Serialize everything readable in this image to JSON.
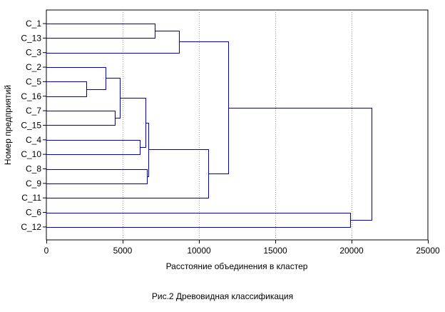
{
  "chart_data": {
    "type": "dendrogram",
    "orientation": "horizontal",
    "xlabel": "Расстояние объединения в кластер",
    "ylabel": "Номер предприятий",
    "caption": "Рис.2 Древовидная классификация",
    "xlim": [
      0,
      25000
    ],
    "xticks": [
      0,
      5000,
      10000,
      15000,
      20000,
      25000
    ],
    "grid": "vertical dotted",
    "leaves": [
      "C_1",
      "C_13",
      "C_3",
      "C_2",
      "C_5",
      "C_16",
      "C_7",
      "C_15",
      "C_4",
      "C_10",
      "C_8",
      "C_9",
      "C_11",
      "C_6",
      "C_12"
    ],
    "merges": [
      {
        "a": "C_1",
        "b": "C_13",
        "distance": 7100
      },
      {
        "a": "C_5",
        "b": "C_16",
        "distance": 2600
      },
      {
        "a": "C_7",
        "b": "C_15",
        "distance": 4500
      },
      {
        "a": "C_4",
        "b": "C_10",
        "distance": 6100
      },
      {
        "a": "C_8",
        "b": "C_9",
        "distance": 6600
      },
      {
        "a": "C_6",
        "b": "C_12",
        "distance": 19900
      },
      {
        "a": "C_2",
        "b": "(C_5,C_16)",
        "distance": 3900
      },
      {
        "a": "(C_2,C_5,C_16)",
        "b": "(C_7,C_15)",
        "distance": 4800
      },
      {
        "a": "(C_1,C_13)",
        "b": "C_3",
        "distance": 8700
      },
      {
        "a": "(C_2..C_15)",
        "b": "(C_4,C_10)",
        "distance": 6500
      },
      {
        "a": "(C_2..C_10)",
        "b": "(C_8,C_9)",
        "distance": 6700
      },
      {
        "a": "(C_2..C_9)",
        "b": "C_11",
        "distance": 10600
      },
      {
        "a": "(C_1,C_13,C_3)",
        "b": "(C_2..C_11)",
        "distance": 11900
      },
      {
        "a": "(C_1..C_11)",
        "b": "(C_6,C_12)",
        "distance": 21300
      }
    ]
  },
  "colors": {
    "lines": "#0000cc",
    "grid": "#a0a0a0",
    "frame": "#000000",
    "background": "#ffffff"
  }
}
